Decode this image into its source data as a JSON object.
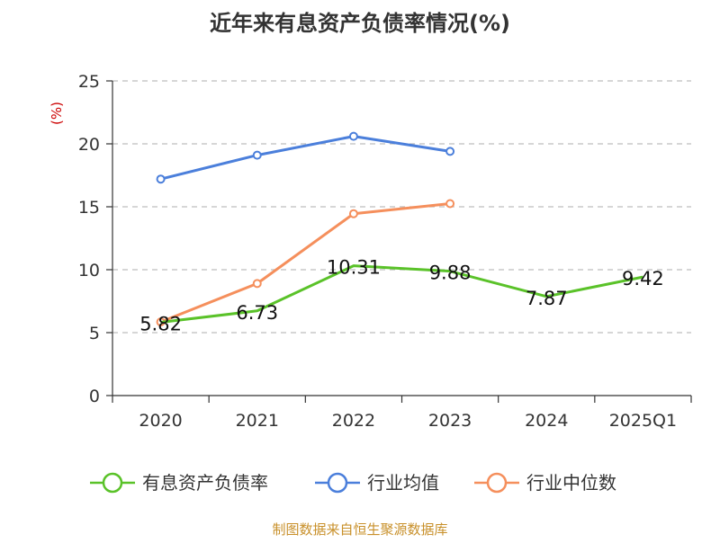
{
  "chart_data": {
    "type": "line",
    "title": "近年来有息资产负债率情况(%)",
    "ylabel": "(%)",
    "xlabel": "",
    "categories": [
      "2020",
      "2021",
      "2022",
      "2023",
      "2024",
      "2025Q1"
    ],
    "ylim": [
      0,
      25
    ],
    "yticks": [
      0,
      5,
      10,
      15,
      20,
      25
    ],
    "grid": true,
    "legend_position": "bottom",
    "series": [
      {
        "name": "有息资产负债率",
        "color": "#5ac229",
        "values": [
          5.82,
          6.73,
          10.31,
          9.88,
          7.87,
          9.42
        ],
        "labels": [
          "5.82",
          "6.73",
          "10.31",
          "9.88",
          "7.87",
          "9.42"
        ]
      },
      {
        "name": "行业均值",
        "color": "#4b7fdb",
        "values": [
          17.2,
          19.1,
          20.6,
          19.4,
          null,
          null
        ]
      },
      {
        "name": "行业中位数",
        "color": "#f58f5c",
        "values": [
          5.85,
          8.9,
          14.45,
          15.25,
          null,
          null
        ]
      }
    ],
    "source": "制图数据来自恒生聚源数据库",
    "colors": {
      "axis": "#333333",
      "grid": "#bdbdbd",
      "ylabel": "#cc0000",
      "source": "#c8902a"
    }
  }
}
